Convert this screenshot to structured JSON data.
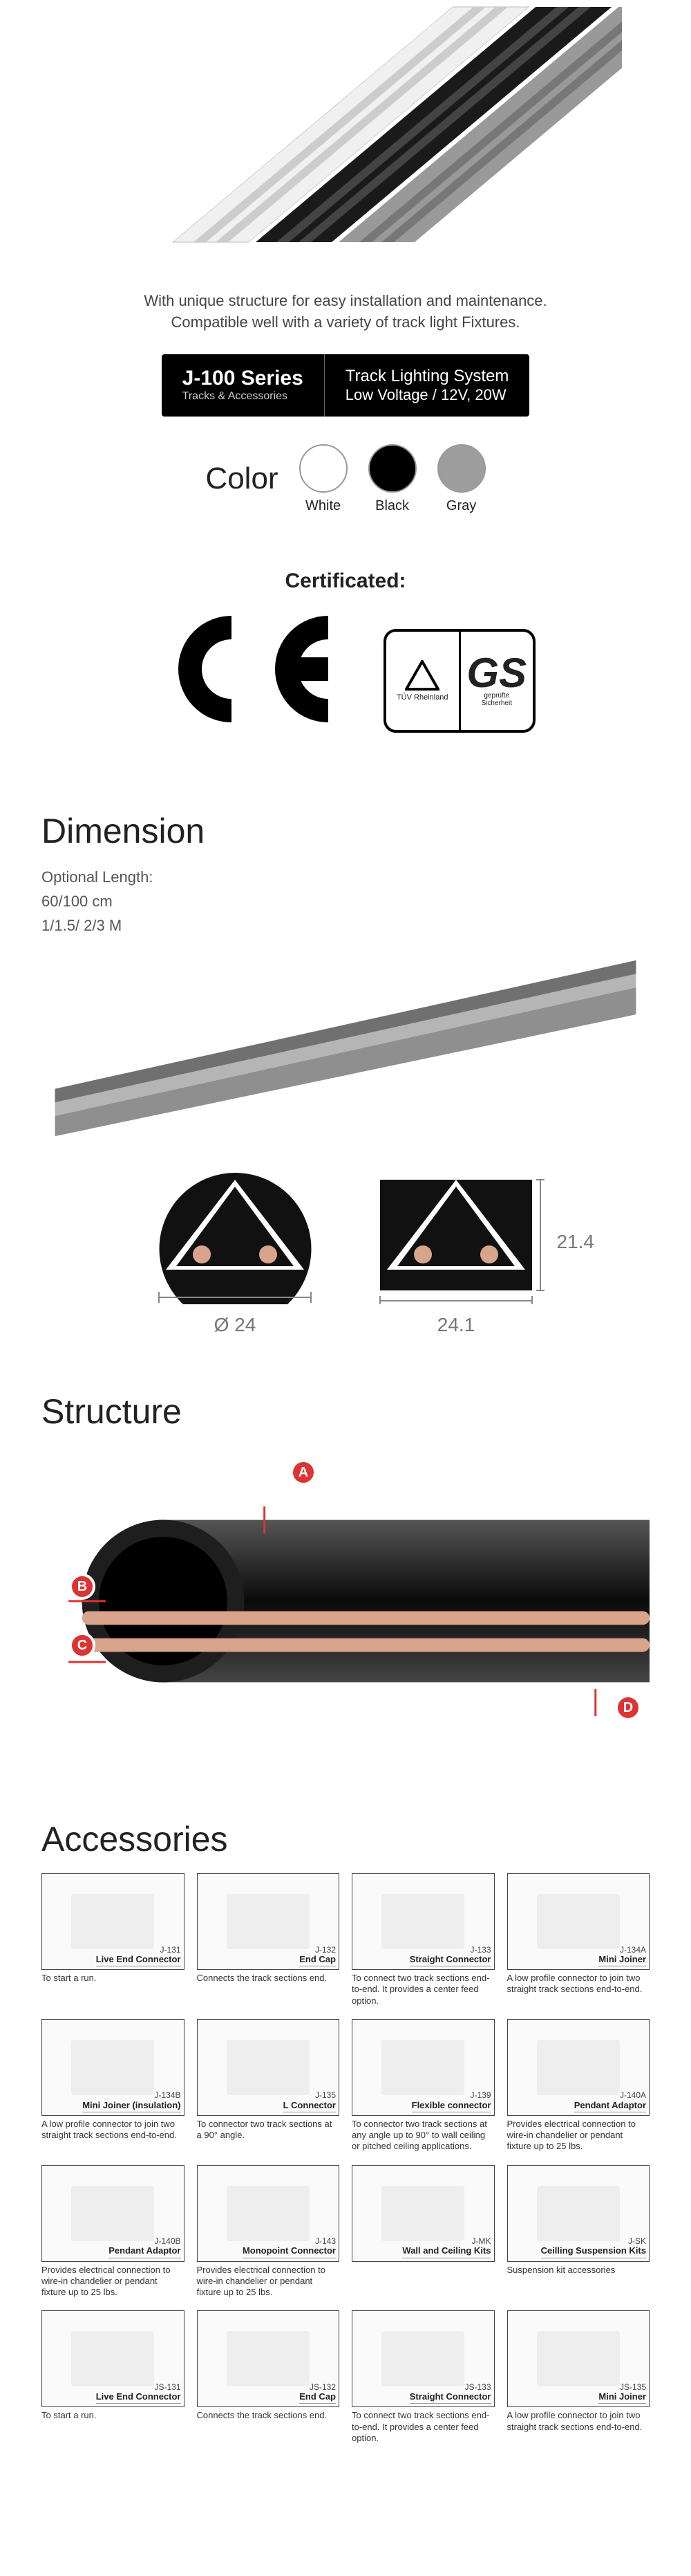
{
  "hero": {
    "desc_line1": "With unique structure for easy installation and maintenance.",
    "desc_line2": "Compatible well with a variety of track light Fixtures.",
    "track_colors": [
      "#f5f5f5",
      "#1a1a1a",
      "#9a9a9a"
    ]
  },
  "badge": {
    "series": "J-100 Series",
    "series_sub": "Tracks & Accessories",
    "system": "Track Lighting System",
    "spec": "Low Voltage / 12V, 20W"
  },
  "colors": {
    "label": "Color",
    "options": [
      {
        "name": "White",
        "hex": "#ffffff"
      },
      {
        "name": "Black",
        "hex": "#000000"
      },
      {
        "name": "Gray",
        "hex": "#9e9e9e"
      }
    ]
  },
  "cert": {
    "title": "Certificated:",
    "ce": "C E",
    "gs_tuv": "TÜV Rheinland",
    "gs_text": "GS",
    "gs_sub": "geprüfte\nSicherheit"
  },
  "dimension": {
    "title": "Dimension",
    "opt_label": "Optional Length:",
    "opt1": "60/100 cm",
    "opt2": "1/1.5/ 2/3 M",
    "diameter_label": "Ø 24",
    "width_label": "24.1",
    "height_label": "21.4",
    "track_render_color": "#8f8f8f"
  },
  "structure": {
    "title": "Structure",
    "points": [
      "A",
      "B",
      "C",
      "D"
    ],
    "body_color": "#1a1a1a",
    "conductor_color": "#d8a58c",
    "point_bg": "#cc3333"
  },
  "accessories": {
    "title": "Accessories",
    "items": [
      {
        "sku": "J-131",
        "name": "Live End Connector",
        "desc": "To start a run."
      },
      {
        "sku": "J-132",
        "name": "End Cap",
        "desc": "Connects the track sections end."
      },
      {
        "sku": "J-133",
        "name": "Straight Connector",
        "desc": "To connect two track sections end-to-end. It provides a center feed option."
      },
      {
        "sku": "J-134A",
        "name": "Mini Joiner",
        "desc": "A low profile connector to join two straight track sections end-to-end."
      },
      {
        "sku": "J-134B",
        "name": "Mini Joiner (insulation)",
        "desc": "A low profile connector to join two straight track sections end-to-end."
      },
      {
        "sku": "J-135",
        "name": "L Connector",
        "desc": "To connector two track sections at a 90° angle."
      },
      {
        "sku": "J-139",
        "name": "Flexible connector",
        "desc": "To connector two track sections at any angle up to 90° to wall ceiling or pitched ceiling applications."
      },
      {
        "sku": "J-140A",
        "name": "Pendant Adaptor",
        "desc": "Provides electrical connection to wire-in chandelier or pendant fixture up to 25 lbs."
      },
      {
        "sku": "J-140B",
        "name": "Pendant Adaptor",
        "desc": "Provides electrical connection to wire-in chandelier or pendant fixture up to 25 lbs."
      },
      {
        "sku": "J-143",
        "name": "Monopoint Connector",
        "desc": "Provides electrical connection to wire-in chandelier or pendant fixture up to 25 lbs."
      },
      {
        "sku": "J-MK",
        "name": "Wall and Ceiling Kits",
        "desc": ""
      },
      {
        "sku": "J-SK",
        "name": "Ceilling Suspension Kits",
        "desc": "Suspension kit accessories"
      },
      {
        "sku": "JS-131",
        "name": "Live End Connector",
        "desc": "To start a run."
      },
      {
        "sku": "JS-132",
        "name": "End Cap",
        "desc": "Connects the track sections end."
      },
      {
        "sku": "JS-133",
        "name": "Straight Connector",
        "desc": "To connect two track sections end-to-end. It provides a center feed option."
      },
      {
        "sku": "JS-135",
        "name": "Mini Joiner",
        "desc": "A low profile connector to join two straight track sections end-to-end."
      }
    ]
  }
}
